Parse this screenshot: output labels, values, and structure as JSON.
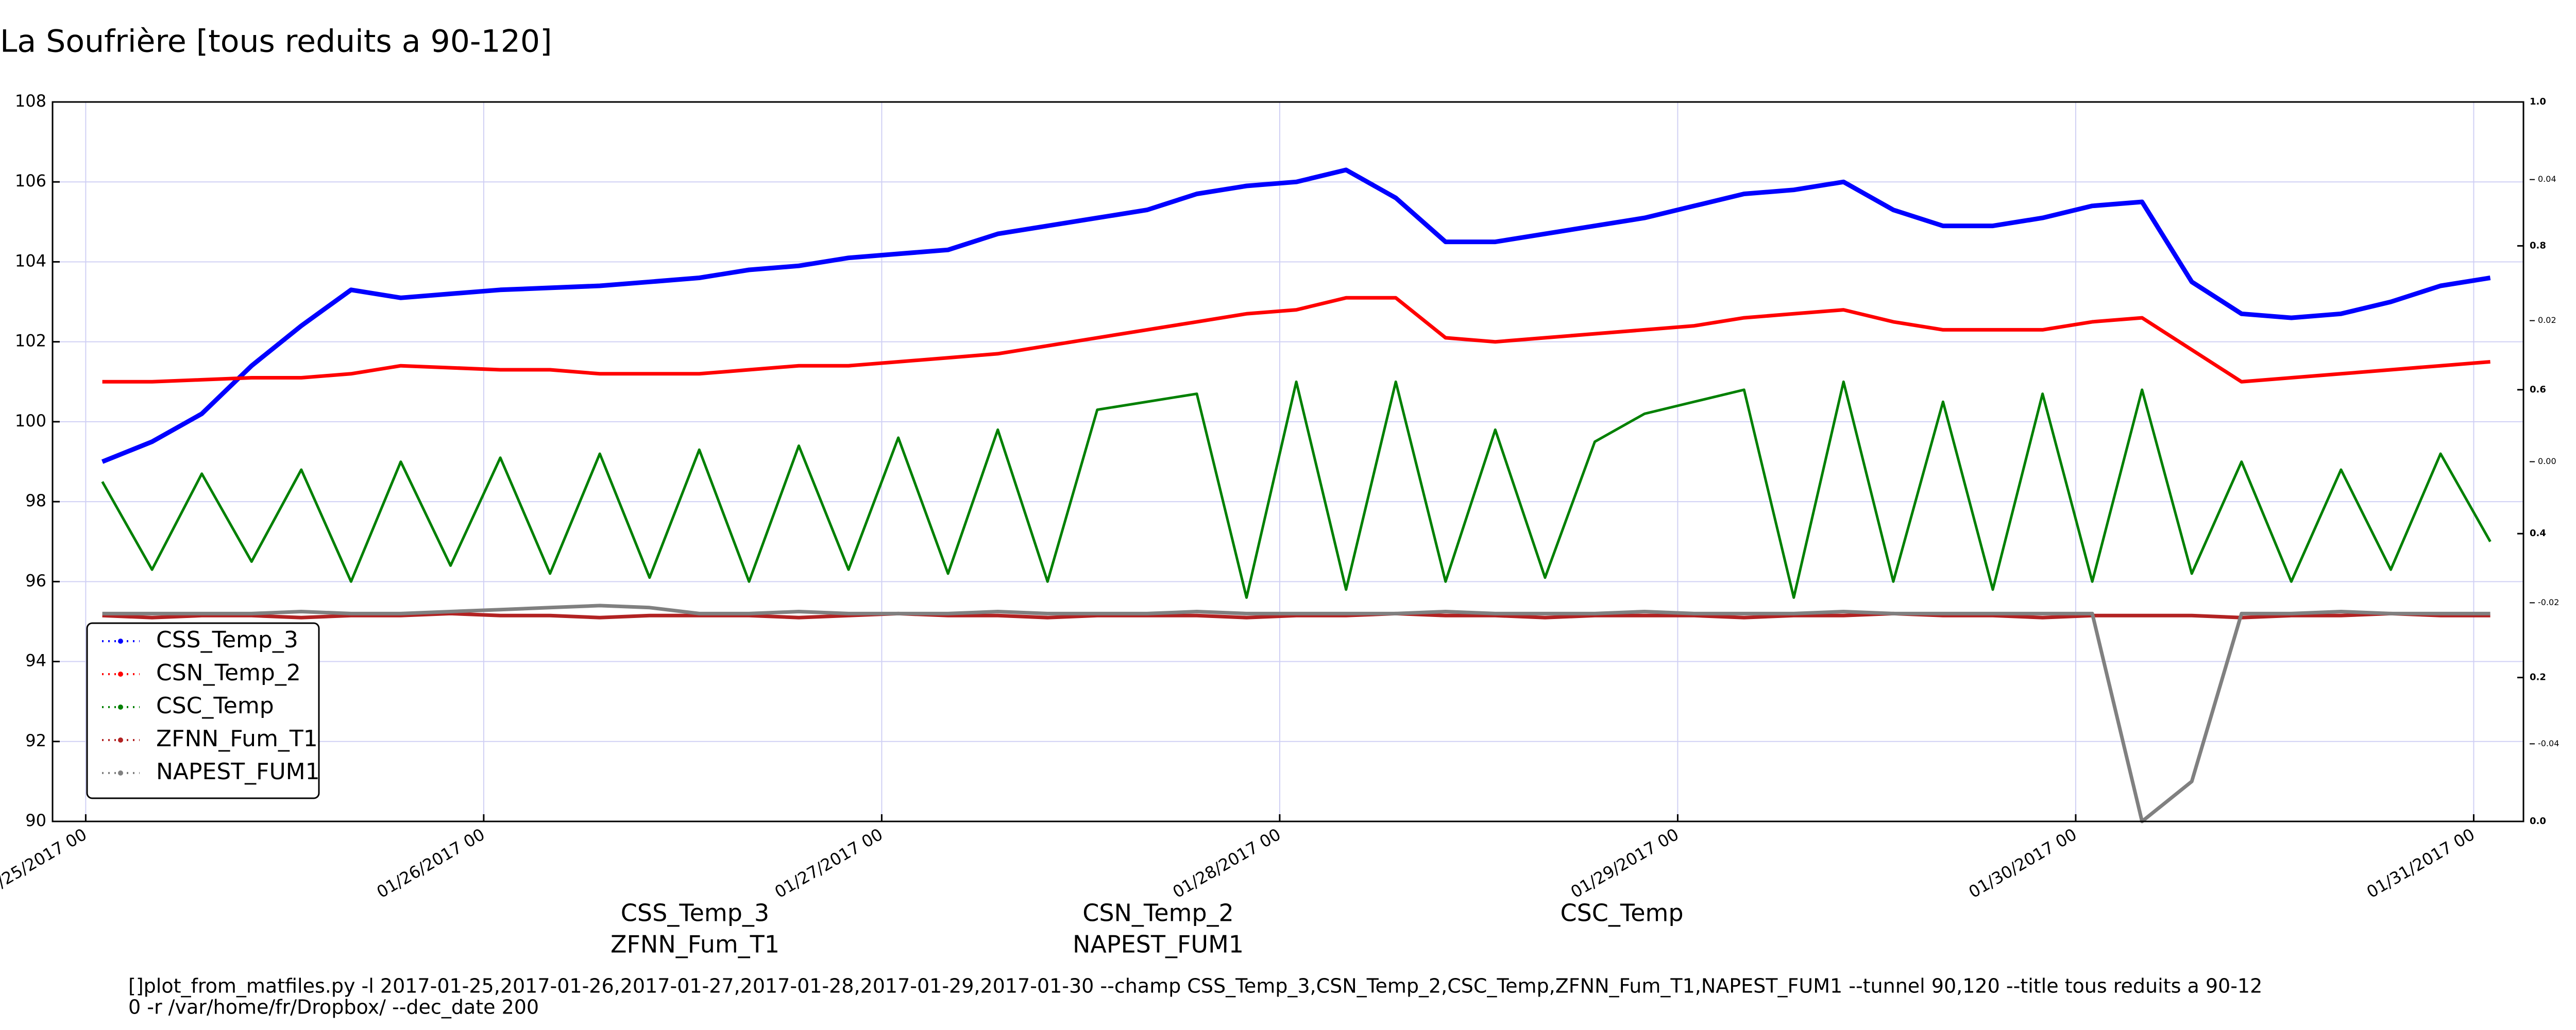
{
  "chart_data": {
    "type": "line",
    "title": "La Soufrière [tous reduits a 90-120]",
    "x": [
      "01/25/2017 01",
      "01/25/2017 04",
      "01/25/2017 07",
      "01/25/2017 10",
      "01/25/2017 13",
      "01/25/2017 16",
      "01/25/2017 19",
      "01/25/2017 22",
      "01/26/2017 01",
      "01/26/2017 04",
      "01/26/2017 07",
      "01/26/2017 10",
      "01/26/2017 13",
      "01/26/2017 16",
      "01/26/2017 19",
      "01/26/2017 22",
      "01/27/2017 01",
      "01/27/2017 04",
      "01/27/2017 07",
      "01/27/2017 10",
      "01/27/2017 13",
      "01/27/2017 16",
      "01/27/2017 19",
      "01/27/2017 22",
      "01/28/2017 01",
      "01/28/2017 04",
      "01/28/2017 07",
      "01/28/2017 10",
      "01/28/2017 13",
      "01/28/2017 16",
      "01/28/2017 19",
      "01/28/2017 22",
      "01/29/2017 01",
      "01/29/2017 04",
      "01/29/2017 07",
      "01/29/2017 10",
      "01/29/2017 13",
      "01/29/2017 16",
      "01/29/2017 19",
      "01/29/2017 22",
      "01/30/2017 01",
      "01/30/2017 04",
      "01/30/2017 07",
      "01/30/2017 10",
      "01/30/2017 13",
      "01/30/2017 16",
      "01/30/2017 19",
      "01/30/2017 22",
      "01/31/2017 01"
    ],
    "series": [
      {
        "name": "CSS_Temp_3",
        "color": "#0000ff",
        "values": [
          99.0,
          99.5,
          100.2,
          101.4,
          102.4,
          103.3,
          103.1,
          103.2,
          103.3,
          103.35,
          103.4,
          103.5,
          103.6,
          103.8,
          103.9,
          104.1,
          104.2,
          104.3,
          104.7,
          104.9,
          105.1,
          105.3,
          105.7,
          105.9,
          106.0,
          106.3,
          105.6,
          104.5,
          104.5,
          104.7,
          104.9,
          105.1,
          105.4,
          105.7,
          105.8,
          106.0,
          105.3,
          104.9,
          104.9,
          105.1,
          105.4,
          105.5,
          103.5,
          102.7,
          102.6,
          102.7,
          103.0,
          103.4,
          103.6
        ]
      },
      {
        "name": "CSN_Temp_2",
        "color": "#ff0000",
        "values": [
          101.0,
          101.0,
          101.05,
          101.1,
          101.1,
          101.2,
          101.4,
          101.35,
          101.3,
          101.3,
          101.2,
          101.2,
          101.2,
          101.3,
          101.4,
          101.4,
          101.5,
          101.6,
          101.7,
          101.9,
          102.1,
          102.3,
          102.5,
          102.7,
          102.8,
          103.1,
          103.1,
          102.1,
          102.0,
          102.1,
          102.2,
          102.3,
          102.4,
          102.6,
          102.7,
          102.8,
          102.5,
          102.3,
          102.3,
          102.3,
          102.5,
          102.6,
          101.8,
          101.0,
          101.1,
          101.2,
          101.3,
          101.4,
          101.5
        ]
      },
      {
        "name": "CSC_Temp",
        "color": "#008000",
        "values": [
          98.5,
          96.3,
          98.7,
          96.5,
          98.8,
          96.0,
          99.0,
          96.4,
          99.1,
          96.2,
          99.2,
          96.1,
          99.3,
          96.0,
          99.4,
          96.3,
          99.6,
          96.2,
          99.8,
          96.0,
          100.3,
          100.5,
          100.7,
          95.6,
          101.0,
          95.8,
          101.0,
          96.0,
          99.8,
          96.1,
          99.5,
          100.2,
          100.5,
          100.8,
          95.6,
          101.0,
          96.0,
          100.5,
          95.8,
          100.7,
          96.0,
          100.8,
          96.2,
          99.0,
          96.0,
          98.8,
          96.3,
          99.2,
          97.0
        ]
      },
      {
        "name": "ZFNN_Fum_T1",
        "color": "#b22222",
        "values": [
          95.15,
          95.1,
          95.15,
          95.15,
          95.1,
          95.15,
          95.15,
          95.2,
          95.15,
          95.15,
          95.1,
          95.15,
          95.15,
          95.15,
          95.1,
          95.15,
          95.2,
          95.15,
          95.15,
          95.1,
          95.15,
          95.15,
          95.15,
          95.1,
          95.15,
          95.15,
          95.2,
          95.15,
          95.15,
          95.1,
          95.15,
          95.15,
          95.15,
          95.1,
          95.15,
          95.15,
          95.2,
          95.15,
          95.15,
          95.1,
          95.15,
          95.15,
          95.15,
          95.1,
          95.15,
          95.15,
          95.2,
          95.15,
          95.15
        ]
      },
      {
        "name": "NAPEST_FUM1",
        "color": "#808080",
        "values": [
          95.2,
          95.2,
          95.2,
          95.2,
          95.25,
          95.2,
          95.2,
          95.25,
          95.3,
          95.35,
          95.4,
          95.35,
          95.2,
          95.2,
          95.25,
          95.2,
          95.2,
          95.2,
          95.25,
          95.2,
          95.2,
          95.2,
          95.25,
          95.2,
          95.2,
          95.2,
          95.2,
          95.25,
          95.2,
          95.2,
          95.2,
          95.25,
          95.2,
          95.2,
          95.2,
          95.25,
          95.2,
          95.2,
          95.2,
          95.2,
          95.2,
          90.0,
          91.0,
          95.2,
          95.2,
          95.25,
          95.2,
          95.2,
          95.2
        ]
      }
    ],
    "xlim": [
      "01/24/2017 22",
      "01/31/2017 03"
    ],
    "xticks": [
      "01/25/2017 00",
      "01/26/2017 00",
      "01/27/2017 00",
      "01/28/2017 00",
      "01/29/2017 00",
      "01/30/2017 00",
      "01/31/2017 00"
    ],
    "ylim": [
      90,
      108
    ],
    "yticks": [
      90,
      92,
      94,
      96,
      98,
      100,
      102,
      104,
      106,
      108
    ],
    "y2lim": [
      0,
      1
    ],
    "y2ticks": [
      {
        "value": 0,
        "label": "0.0"
      },
      0.2,
      0.4,
      0.6,
      0.8,
      {
        "value": 1,
        "label": "1.0"
      }
    ],
    "y3lim": [
      -0.051,
      0.051
    ],
    "y3ticks": [
      -0.04,
      -0.02,
      {
        "value": 0,
        "label": "0.00"
      },
      0.02,
      0.04
    ],
    "grid": true,
    "legend": "lower left",
    "footer": [
      "[]plot_from_matfiles.py -l 2017-01-25,2017-01-26,2017-01-27,2017-01-28,2017-01-29,2017-01-30 --champ CSS_Temp_3,CSN_Temp_2,CSC_Temp,ZFNN_Fum_T1,NAPEST_FUM1 --tunnel 90,120 --title tous reduits a 90-12",
      "0 -r /var/home/fr/Dropbox/ --dec_date 200"
    ]
  }
}
